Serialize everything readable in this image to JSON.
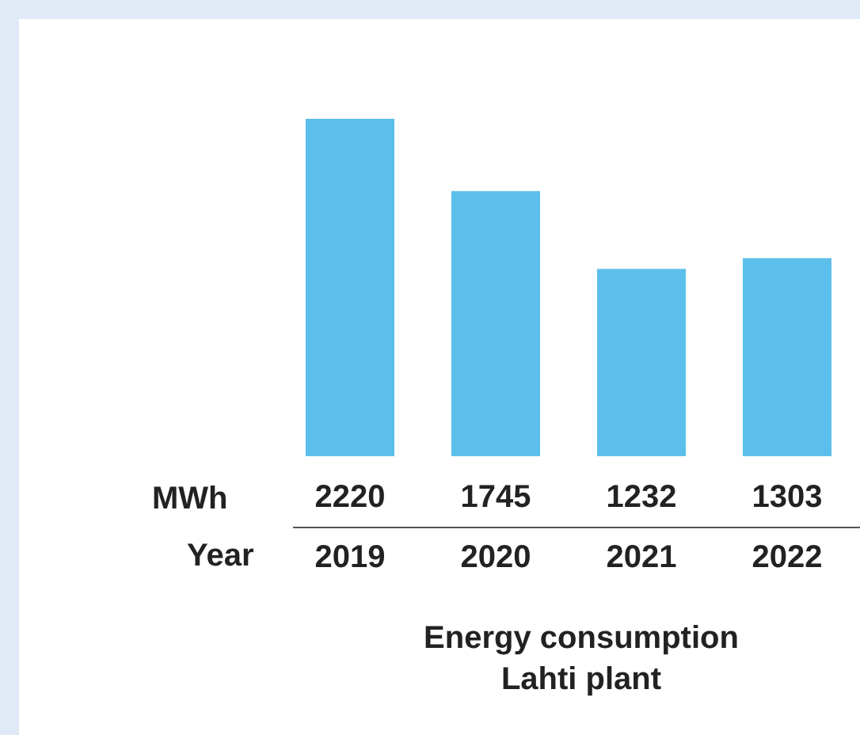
{
  "chart_data": {
    "type": "bar",
    "title": "Energy consumption\nLahti plant",
    "ylabel": "MWh",
    "xlabel": "Year",
    "categories": [
      "2019",
      "2020",
      "2021",
      "2022"
    ],
    "values": [
      2220,
      1745,
      1232,
      1303
    ],
    "color": "#5cbfeb",
    "data_labels": true
  }
}
